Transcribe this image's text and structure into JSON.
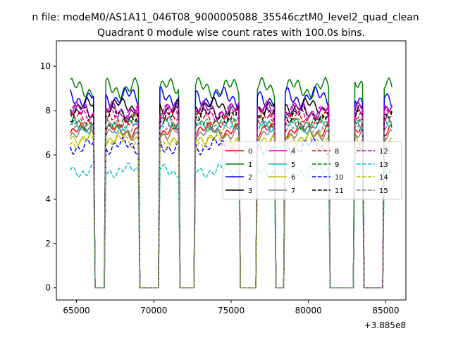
{
  "chart_data": {
    "type": "line",
    "suptitle": "n file: modeM0/AS1A11_046T08_9000005088_35546cztM0_level2_quad_clean",
    "title": "Quadrant 0 module wise count rates with 100.0s bins.",
    "xlabel": "",
    "ylabel": "",
    "x_offset_label": "+3.885e8",
    "x_offset": 388500000,
    "xlim": [
      63700,
      86300
    ],
    "ylim": [
      -0.55,
      11.15
    ],
    "xticks": [
      65000,
      70000,
      75000,
      80000,
      85000
    ],
    "xtick_labels": [
      "65000",
      "70000",
      "75000",
      "80000",
      "85000"
    ],
    "yticks": [
      0,
      2,
      4,
      6,
      8,
      10
    ],
    "ytick_labels": [
      "0",
      "2",
      "4",
      "6",
      "8",
      "10"
    ],
    "legend_position": "center-right",
    "bin_seconds": 100.0,
    "x_start": 64600,
    "x_end": 85400,
    "on_intervals": [
      [
        64600,
        66100
      ],
      [
        66900,
        69000
      ],
      [
        70400,
        71600
      ],
      [
        72700,
        75500
      ],
      [
        76700,
        77800
      ],
      [
        78500,
        81300
      ],
      [
        83000,
        83500
      ],
      [
        84900,
        85400
      ]
    ],
    "series": [
      {
        "name": "0",
        "color": "#ff0000",
        "dash": false,
        "level": 7.1,
        "amp": 0.35
      },
      {
        "name": "1",
        "color": "#008000",
        "dash": false,
        "level": 9.0,
        "amp": 0.5
      },
      {
        "name": "2",
        "color": "#0000ff",
        "dash": false,
        "level": 8.6,
        "amp": 0.5
      },
      {
        "name": "3",
        "color": "#000000",
        "dash": false,
        "level": 8.2,
        "amp": 0.4
      },
      {
        "name": "4",
        "color": "#bf00bf",
        "dash": false,
        "level": 8.0,
        "amp": 0.45
      },
      {
        "name": "5",
        "color": "#00bfbf",
        "dash": false,
        "level": 7.3,
        "amp": 0.35
      },
      {
        "name": "6",
        "color": "#bfbf00",
        "dash": false,
        "level": 6.8,
        "amp": 0.35
      },
      {
        "name": "7",
        "color": "#808080",
        "dash": false,
        "level": 7.0,
        "amp": 0.35
      },
      {
        "name": "8",
        "color": "#ff0000",
        "dash": true,
        "level": 7.6,
        "amp": 0.4
      },
      {
        "name": "9",
        "color": "#008000",
        "dash": true,
        "level": 7.5,
        "amp": 0.4
      },
      {
        "name": "10",
        "color": "#0000ff",
        "dash": true,
        "level": 6.4,
        "amp": 0.4
      },
      {
        "name": "11",
        "color": "#000000",
        "dash": true,
        "level": 7.8,
        "amp": 0.4
      },
      {
        "name": "12",
        "color": "#bf00bf",
        "dash": true,
        "level": 7.9,
        "amp": 0.4
      },
      {
        "name": "13",
        "color": "#00bfbf",
        "dash": true,
        "level": 5.3,
        "amp": 0.35
      },
      {
        "name": "14",
        "color": "#bfbf00",
        "dash": true,
        "level": 6.6,
        "amp": 0.35
      },
      {
        "name": "15",
        "color": "#808080",
        "dash": true,
        "level": 7.3,
        "amp": 0.35
      }
    ]
  }
}
